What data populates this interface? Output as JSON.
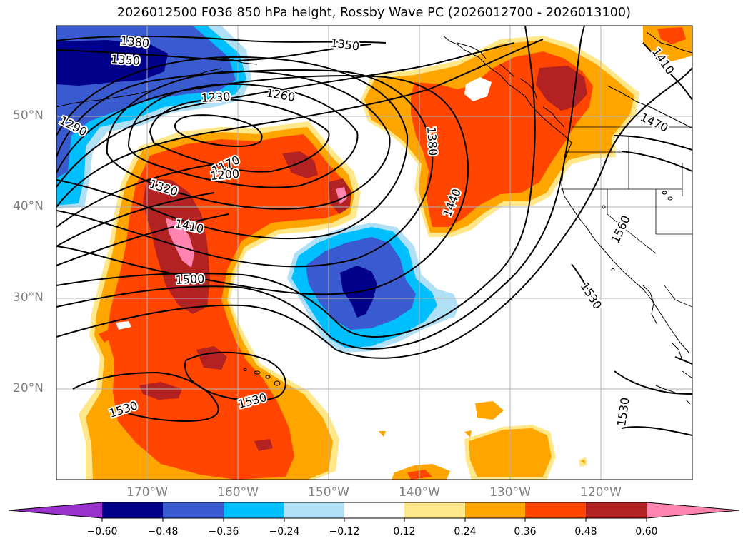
{
  "title": "2026012500 F036 850 hPa height, Rossby Wave PC (2026012700 - 2026013100)",
  "lat_labels": [
    "50°N",
    "40°N",
    "30°N",
    "20°N"
  ],
  "lon_labels": [
    "170°W",
    "160°W",
    "150°W",
    "140°W",
    "130°W",
    "120°W"
  ],
  "contour_labels": [
    "1380",
    "1350",
    "1350",
    "1230",
    "1260",
    "1290",
    "1170",
    "1200",
    "1320",
    "1410",
    "1500",
    "1380",
    "1440",
    "1410",
    "1470",
    "1560",
    "1530",
    "1530",
    "1530",
    "1530"
  ],
  "colorbar": {
    "ticks": [
      "−0.60",
      "−0.48",
      "−0.36",
      "−0.24",
      "−0.12",
      "0.12",
      "0.24",
      "0.36",
      "0.48",
      "0.60"
    ],
    "colors": {
      "lt_neg060": "#9932cc",
      "neg060_neg048": "#00008b",
      "neg048_neg036": "#3a5bd0",
      "neg036_neg024": "#00bfff",
      "neg024_neg012": "#b0e0f6",
      "neutral": "#ffffff",
      "pos012_pos024": "#ffe78a",
      "pos024_pos036": "#ffa500",
      "pos036_pos048": "#ff4500",
      "pos048_pos060": "#b22222",
      "gt_pos060": "#ff85b0"
    }
  }
}
